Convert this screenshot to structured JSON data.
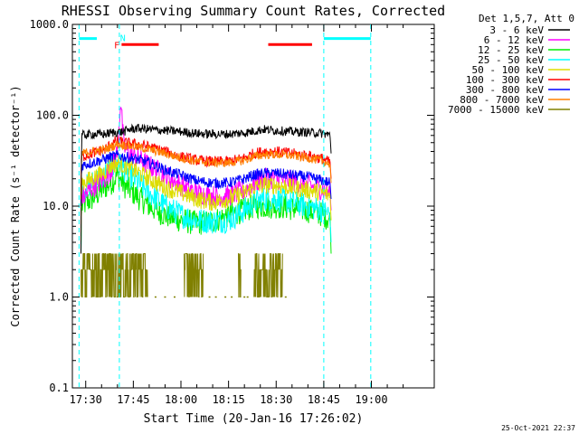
{
  "chart_data": {
    "type": "line",
    "title": "RHESSI Observing Summary Count Rates, Corrected",
    "xlabel": "Start Time (20-Jan-16 17:26:02)",
    "ylabel": "Corrected Count Rate (s⁻¹ detector⁻¹)",
    "y_scale": "log",
    "ylim": [
      0.1,
      1000
    ],
    "xlim_minutes": [
      17.43,
      19.33
    ],
    "x_ticks": [
      {
        "label": "17:30",
        "m": 1050
      },
      {
        "label": "17:45",
        "m": 1065
      },
      {
        "label": "18:00",
        "m": 1080
      },
      {
        "label": "18:15",
        "m": 1095
      },
      {
        "label": "18:30",
        "m": 1110
      },
      {
        "label": "18:45",
        "m": 1125
      },
      {
        "label": "19:00",
        "m": 1140
      }
    ],
    "y_ticks": [
      {
        "label": "0.1",
        "v": 0.1
      },
      {
        "label": "1.0",
        "v": 1
      },
      {
        "label": "10.0",
        "v": 10
      },
      {
        "label": "100.0",
        "v": 100
      },
      {
        "label": "1000.0",
        "v": 1000
      }
    ],
    "legend_header": "Det 1,5,7, Att 0",
    "legend_position": "top-right",
    "series": [
      {
        "name": "3 - 6 keV",
        "color": "#000000",
        "noise": 0.05,
        "points": [
          [
            1048.5,
            3
          ],
          [
            1048.7,
            60
          ],
          [
            1052,
            62
          ],
          [
            1056,
            62
          ],
          [
            1058,
            64
          ],
          [
            1062,
            66
          ],
          [
            1064,
            70
          ],
          [
            1066,
            72
          ],
          [
            1070,
            70
          ],
          [
            1075,
            68
          ],
          [
            1080,
            66
          ],
          [
            1085,
            63
          ],
          [
            1090,
            62
          ],
          [
            1095,
            62
          ],
          [
            1100,
            64
          ],
          [
            1103,
            67
          ],
          [
            1106,
            70
          ],
          [
            1110,
            68
          ],
          [
            1115,
            66
          ],
          [
            1120,
            65
          ],
          [
            1125,
            63
          ],
          [
            1127,
            60
          ],
          [
            1127.3,
            38
          ]
        ]
      },
      {
        "name": "6 - 12 keV",
        "color": "#ff00ff",
        "noise": 0.12,
        "points": [
          [
            1048.5,
            5
          ],
          [
            1048.7,
            12
          ],
          [
            1052,
            16
          ],
          [
            1056,
            20
          ],
          [
            1058,
            25
          ],
          [
            1060,
            40
          ],
          [
            1061,
            150
          ],
          [
            1062,
            45
          ],
          [
            1064,
            38
          ],
          [
            1066,
            34
          ],
          [
            1070,
            28
          ],
          [
            1075,
            22
          ],
          [
            1080,
            17
          ],
          [
            1085,
            14
          ],
          [
            1090,
            13
          ],
          [
            1095,
            13
          ],
          [
            1100,
            15
          ],
          [
            1103,
            18
          ],
          [
            1106,
            20
          ],
          [
            1110,
            20
          ],
          [
            1115,
            19
          ],
          [
            1120,
            17
          ],
          [
            1125,
            15
          ],
          [
            1127,
            14
          ],
          [
            1127.3,
            9
          ]
        ]
      },
      {
        "name": "12 - 25 keV",
        "color": "#00ee00",
        "noise": 0.14,
        "points": [
          [
            1048.5,
            3
          ],
          [
            1048.7,
            10
          ],
          [
            1052,
            12
          ],
          [
            1056,
            16
          ],
          [
            1058,
            18
          ],
          [
            1060,
            22
          ],
          [
            1062,
            17
          ],
          [
            1064,
            15
          ],
          [
            1066,
            13
          ],
          [
            1070,
            10
          ],
          [
            1075,
            8
          ],
          [
            1080,
            7
          ],
          [
            1085,
            6.5
          ],
          [
            1090,
            6.8
          ],
          [
            1095,
            8
          ],
          [
            1100,
            9
          ],
          [
            1103,
            10
          ],
          [
            1106,
            10
          ],
          [
            1110,
            10
          ],
          [
            1115,
            9.5
          ],
          [
            1120,
            9
          ],
          [
            1125,
            8
          ],
          [
            1127,
            7
          ],
          [
            1127.3,
            3
          ]
        ]
      },
      {
        "name": "25 - 50 keV",
        "color": "#00ffff",
        "noise": 0.14,
        "points": [
          [
            1048.5,
            3
          ],
          [
            1048.7,
            15
          ],
          [
            1052,
            18
          ],
          [
            1056,
            22
          ],
          [
            1058,
            26
          ],
          [
            1060,
            30
          ],
          [
            1062,
            26
          ],
          [
            1064,
            22
          ],
          [
            1066,
            19
          ],
          [
            1070,
            14
          ],
          [
            1075,
            10
          ],
          [
            1080,
            8
          ],
          [
            1085,
            7
          ],
          [
            1090,
            6.8
          ],
          [
            1095,
            7
          ],
          [
            1100,
            9
          ],
          [
            1103,
            11
          ],
          [
            1106,
            12
          ],
          [
            1110,
            12
          ],
          [
            1115,
            11
          ],
          [
            1120,
            10
          ],
          [
            1125,
            9
          ],
          [
            1127,
            8
          ],
          [
            1127.3,
            4
          ]
        ]
      },
      {
        "name": "50 - 100 keV",
        "color": "#dddd00",
        "noise": 0.1,
        "points": [
          [
            1048.5,
            4
          ],
          [
            1048.7,
            18
          ],
          [
            1052,
            20
          ],
          [
            1056,
            24
          ],
          [
            1058,
            28
          ],
          [
            1060,
            30
          ],
          [
            1062,
            28
          ],
          [
            1064,
            26
          ],
          [
            1066,
            24
          ],
          [
            1070,
            20
          ],
          [
            1075,
            16
          ],
          [
            1080,
            14
          ],
          [
            1085,
            12
          ],
          [
            1090,
            11
          ],
          [
            1095,
            12
          ],
          [
            1100,
            14
          ],
          [
            1103,
            16
          ],
          [
            1106,
            17
          ],
          [
            1110,
            17
          ],
          [
            1115,
            16
          ],
          [
            1120,
            15
          ],
          [
            1125,
            14
          ],
          [
            1127,
            13
          ],
          [
            1127.3,
            7
          ]
        ]
      },
      {
        "name": "100 - 300 keV",
        "color": "#ff0000",
        "noise": 0.06,
        "points": [
          [
            1048.5,
            15
          ],
          [
            1048.7,
            35
          ],
          [
            1052,
            38
          ],
          [
            1056,
            42
          ],
          [
            1058,
            48
          ],
          [
            1060,
            52
          ],
          [
            1062,
            50
          ],
          [
            1066,
            48
          ],
          [
            1070,
            45
          ],
          [
            1075,
            40
          ],
          [
            1080,
            35
          ],
          [
            1085,
            32
          ],
          [
            1090,
            31
          ],
          [
            1095,
            31
          ],
          [
            1100,
            34
          ],
          [
            1103,
            38
          ],
          [
            1106,
            40
          ],
          [
            1110,
            40
          ],
          [
            1115,
            38
          ],
          [
            1120,
            36
          ],
          [
            1125,
            33
          ],
          [
            1127,
            30
          ],
          [
            1127.3,
            20
          ]
        ]
      },
      {
        "name": "300 - 800 keV",
        "color": "#0000ff",
        "noise": 0.06,
        "points": [
          [
            1048.5,
            10
          ],
          [
            1048.7,
            28
          ],
          [
            1052,
            30
          ],
          [
            1056,
            33
          ],
          [
            1058,
            35
          ],
          [
            1060,
            36
          ],
          [
            1062,
            35
          ],
          [
            1066,
            33
          ],
          [
            1070,
            30
          ],
          [
            1075,
            25
          ],
          [
            1080,
            22
          ],
          [
            1085,
            19
          ],
          [
            1090,
            18
          ],
          [
            1095,
            18
          ],
          [
            1100,
            20
          ],
          [
            1103,
            22
          ],
          [
            1106,
            23
          ],
          [
            1110,
            23
          ],
          [
            1115,
            22
          ],
          [
            1120,
            21
          ],
          [
            1125,
            19
          ],
          [
            1127,
            18
          ],
          [
            1127.3,
            12
          ]
        ]
      },
      {
        "name": "800 - 7000 keV",
        "color": "#ff8000",
        "noise": 0.05,
        "points": [
          [
            1048.5,
            12
          ],
          [
            1048.7,
            38
          ],
          [
            1052,
            40
          ],
          [
            1056,
            42
          ],
          [
            1058,
            45
          ],
          [
            1060,
            48
          ],
          [
            1062,
            47
          ],
          [
            1066,
            45
          ],
          [
            1070,
            42
          ],
          [
            1075,
            38
          ],
          [
            1080,
            34
          ],
          [
            1085,
            31
          ],
          [
            1090,
            30
          ],
          [
            1095,
            30
          ],
          [
            1100,
            32
          ],
          [
            1103,
            35
          ],
          [
            1106,
            37
          ],
          [
            1110,
            37
          ],
          [
            1115,
            36
          ],
          [
            1120,
            34
          ],
          [
            1125,
            31
          ],
          [
            1127,
            29
          ],
          [
            1127.3,
            18
          ]
        ]
      }
    ],
    "bursty_series": {
      "name": "7000 - 15000 keV",
      "color": "#808000",
      "levels": [
        1,
        2,
        3
      ],
      "segments": [
        [
          1048.5,
          1069.5
        ],
        [
          1081,
          1087
        ],
        [
          1098,
          1099
        ],
        [
          1103,
          1112
        ]
      ],
      "sparse_points": [
        1072,
        1075,
        1078,
        1089,
        1091,
        1094,
        1096,
        1100,
        1101,
        1113
      ]
    },
    "annotations": {
      "saa_bars": {
        "color": "#00ffff",
        "y": 700,
        "intervals": [
          [
            1047.9,
            1053.5
          ],
          [
            1125,
            1139.8
          ]
        ],
        "dashed_edges": [
          1047.9,
          1060.6,
          1125,
          1139.8
        ]
      },
      "flare_bars": {
        "color": "#ff0000",
        "y": 600,
        "intervals": [
          [
            1061.3,
            1073
          ],
          [
            1107.5,
            1121.3
          ]
        ]
      },
      "flag_letters": [
        {
          "text": "F",
          "m": 1059.8,
          "v": 600,
          "color": "#ff0000"
        },
        {
          "text": "N",
          "m": 1061.7,
          "v": 720,
          "color": "#00ffff"
        }
      ]
    },
    "footer_date": "25-Oct-2021 22:37"
  }
}
